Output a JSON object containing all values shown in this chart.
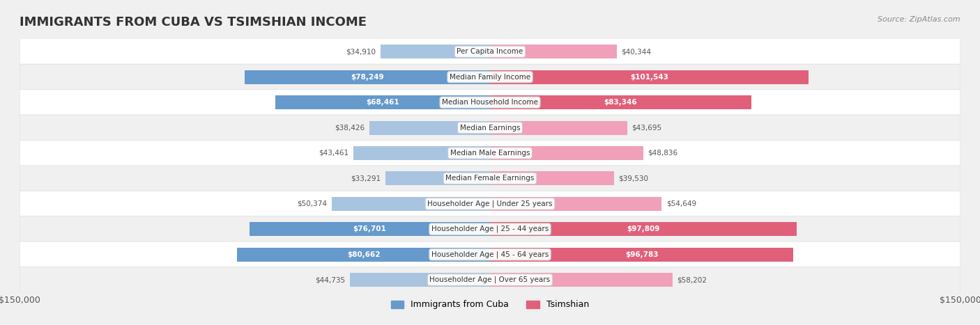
{
  "title": "IMMIGRANTS FROM CUBA VS TSIMSHIAN INCOME",
  "source": "Source: ZipAtlas.com",
  "categories": [
    "Per Capita Income",
    "Median Family Income",
    "Median Household Income",
    "Median Earnings",
    "Median Male Earnings",
    "Median Female Earnings",
    "Householder Age | Under 25 years",
    "Householder Age | 25 - 44 years",
    "Householder Age | 45 - 64 years",
    "Householder Age | Over 65 years"
  ],
  "cuba_values": [
    34910,
    78249,
    68461,
    38426,
    43461,
    33291,
    50374,
    76701,
    80662,
    44735
  ],
  "tsimshian_values": [
    40344,
    101543,
    83346,
    43695,
    48836,
    39530,
    54649,
    97809,
    96783,
    58202
  ],
  "cuba_labels": [
    "$34,910",
    "$78,249",
    "$68,461",
    "$38,426",
    "$43,461",
    "$33,291",
    "$50,374",
    "$76,701",
    "$80,662",
    "$44,735"
  ],
  "tsimshian_labels": [
    "$40,344",
    "$101,543",
    "$83,346",
    "$43,695",
    "$48,836",
    "$39,530",
    "$54,649",
    "$97,809",
    "$96,783",
    "$58,202"
  ],
  "cuba_high": [
    false,
    true,
    true,
    false,
    false,
    false,
    false,
    true,
    true,
    false
  ],
  "tsimshian_high": [
    false,
    true,
    true,
    false,
    false,
    false,
    false,
    true,
    true,
    false
  ],
  "max_value": 150000,
  "cuba_color_light": "#a8c4e0",
  "cuba_color_dark": "#6699cc",
  "tsimshian_color_light": "#f0a0b8",
  "tsimshian_color_dark": "#e0607a",
  "background_color": "#f5f5f5",
  "row_bg_color": "#eeeeee",
  "legend_cuba": "Immigrants from Cuba",
  "legend_tsimshian": "Tsimshian"
}
